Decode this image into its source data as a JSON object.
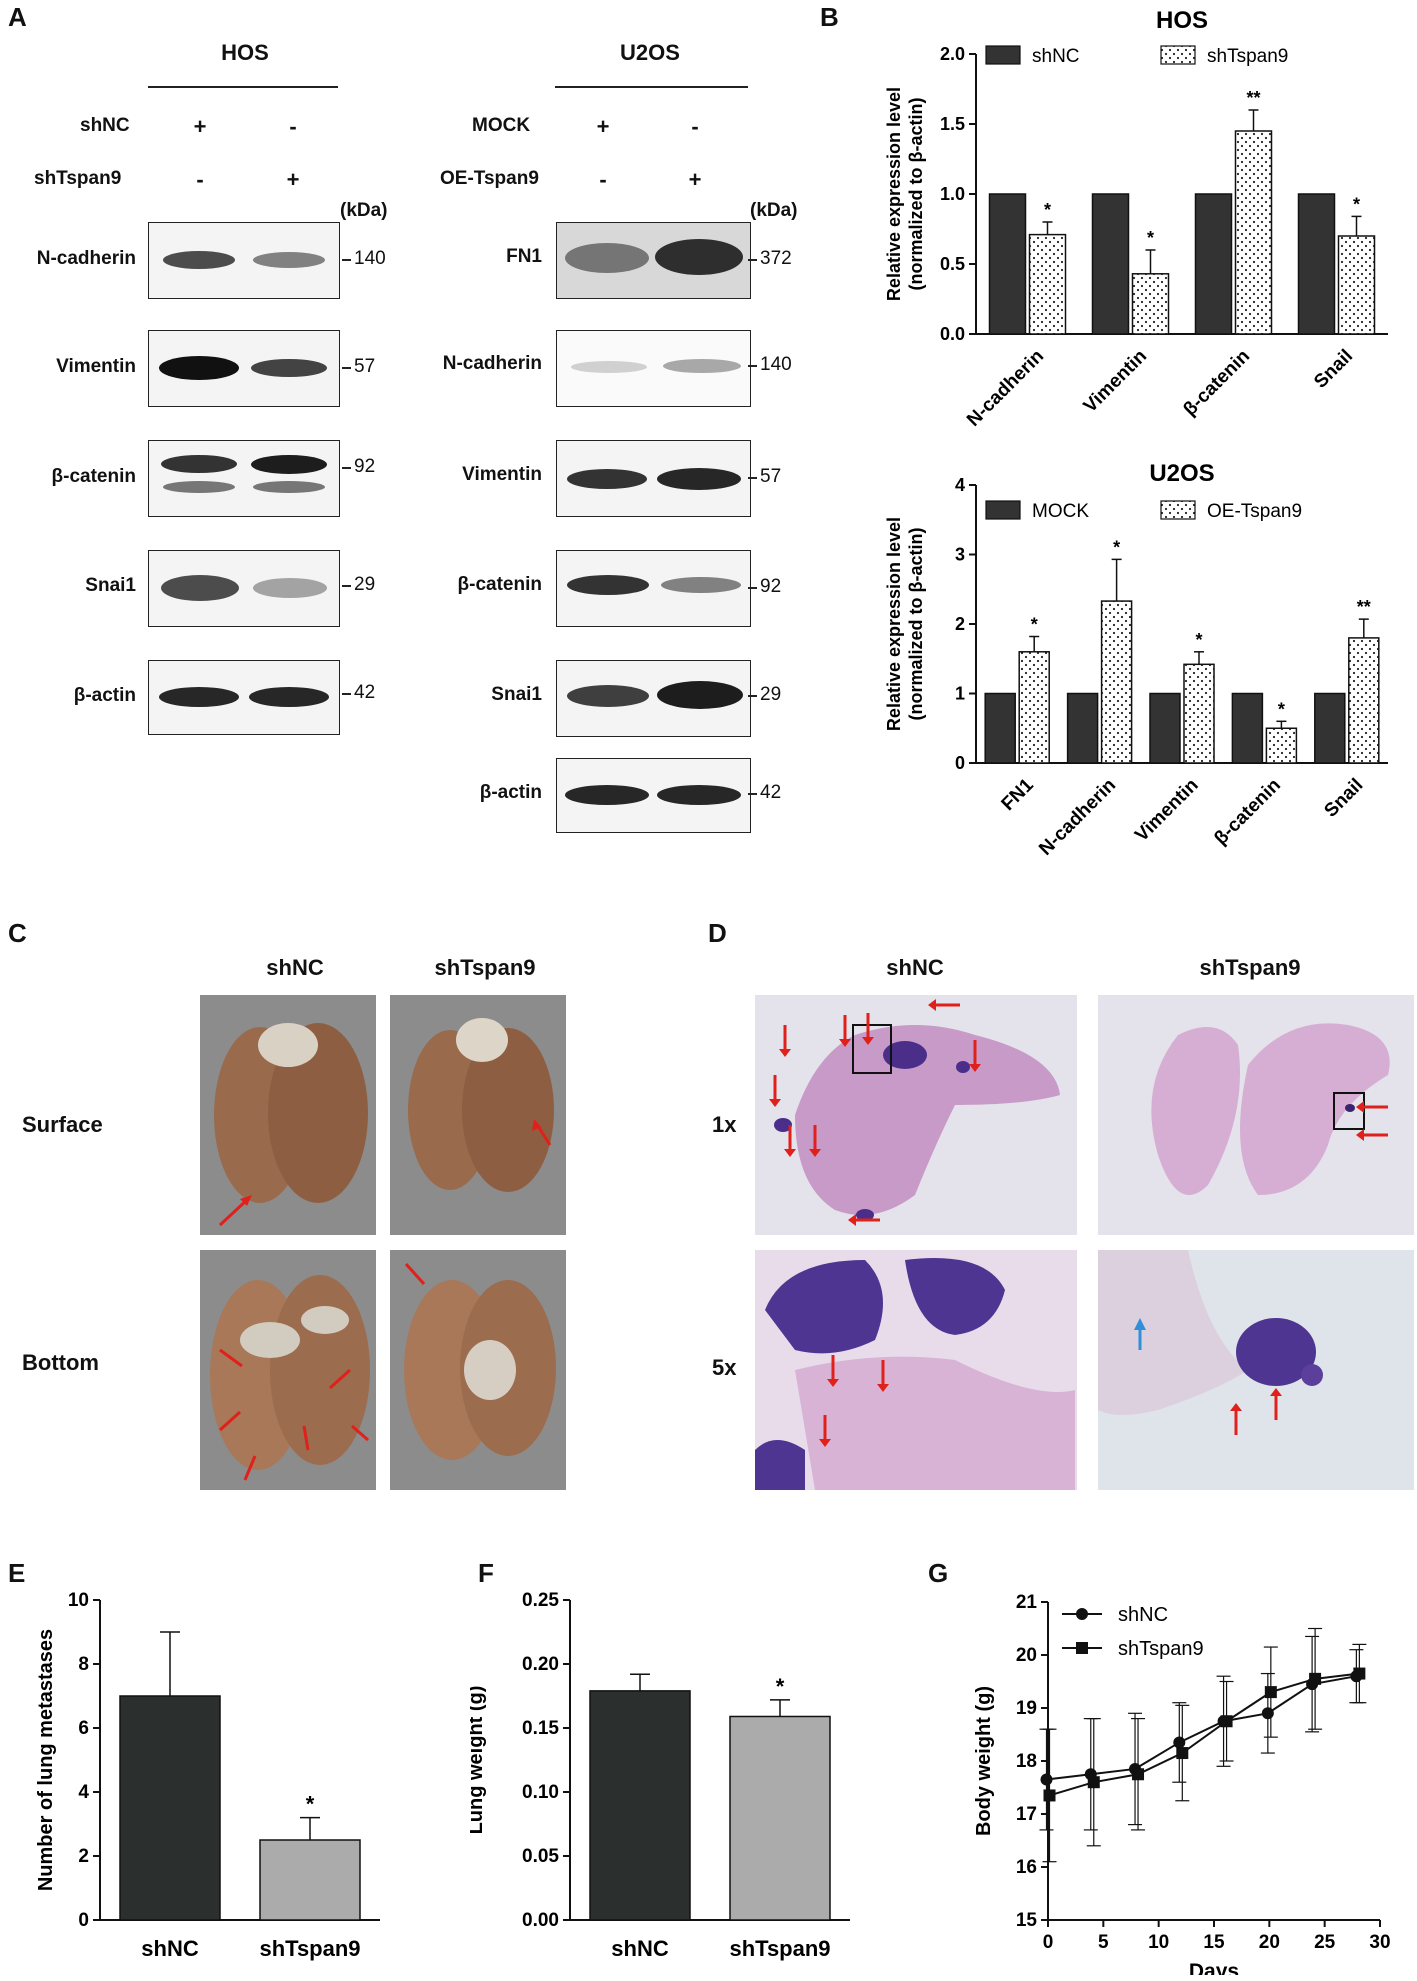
{
  "panels": {
    "A": "A",
    "B": "B",
    "C": "C",
    "D": "D",
    "E": "E",
    "F": "F",
    "G": "G"
  },
  "panelA": {
    "kda_unit": "(kDa)",
    "hos": {
      "title": "HOS",
      "conditions": [
        {
          "name": "shNC",
          "lanes": [
            "+",
            "-"
          ]
        },
        {
          "name": "shTspan9",
          "lanes": [
            "-",
            "+"
          ]
        }
      ],
      "blots": [
        {
          "label": "N-cadherin",
          "mw": "140",
          "intensity": [
            0.8,
            0.55
          ]
        },
        {
          "label": "Vimentin",
          "mw": "57",
          "intensity": [
            1.0,
            0.75
          ]
        },
        {
          "label": "β-catenin",
          "mw": "92",
          "intensity": [
            0.85,
            0.95
          ]
        },
        {
          "label": "Snai1",
          "mw": "29",
          "intensity": [
            0.85,
            0.45
          ]
        },
        {
          "label": "β-actin",
          "mw": "42",
          "intensity": [
            0.9,
            0.9
          ]
        }
      ]
    },
    "u2os": {
      "title": "U2OS",
      "conditions": [
        {
          "name": "MOCK",
          "lanes": [
            "+",
            "-"
          ]
        },
        {
          "name": "OE-Tspan9",
          "lanes": [
            "-",
            "+"
          ]
        }
      ],
      "blots": [
        {
          "label": "FN1",
          "mw": "372",
          "intensity": [
            0.6,
            0.85
          ]
        },
        {
          "label": "N-cadherin",
          "mw": "140",
          "intensity": [
            0.2,
            0.4
          ]
        },
        {
          "label": "Vimentin",
          "mw": "57",
          "intensity": [
            0.85,
            0.9
          ]
        },
        {
          "label": "β-catenin",
          "mw": "92",
          "intensity": [
            0.85,
            0.55
          ]
        },
        {
          "label": "Snai1",
          "mw": "29",
          "intensity": [
            0.8,
            0.95
          ]
        },
        {
          "label": "β-actin",
          "mw": "42",
          "intensity": [
            0.9,
            0.9
          ]
        }
      ]
    }
  },
  "panelC": {
    "columns": [
      "shNC",
      "shTspan9"
    ],
    "rows": [
      "Surface",
      "Bottom"
    ]
  },
  "panelD": {
    "columns": [
      "shNC",
      "shTspan9"
    ],
    "rows": [
      "1x",
      "5x"
    ]
  },
  "chart_data": [
    {
      "id": "B-HOS",
      "type": "bar",
      "title": "HOS",
      "ylabel": "Relative expression level\n(normalized to β-actin)",
      "ylim": [
        0,
        2.0
      ],
      "yticks": [
        "0.0",
        "0.5",
        "1.0",
        "1.5",
        "2.0"
      ],
      "categories": [
        "N-cadherin",
        "Vimentin",
        "β-catenin",
        "Snail"
      ],
      "series": [
        {
          "name": "shNC",
          "values": [
            1.0,
            1.0,
            1.0,
            1.0
          ],
          "errors": [
            0,
            0,
            0,
            0
          ],
          "color": "#333333"
        },
        {
          "name": "shTspan9",
          "values": [
            0.71,
            0.43,
            1.45,
            0.7
          ],
          "errors": [
            0.09,
            0.17,
            0.15,
            0.14
          ],
          "color": "#ffffff"
        }
      ],
      "significance": [
        "*",
        "*",
        "**",
        "*"
      ],
      "legend": "top"
    },
    {
      "id": "B-U2OS",
      "type": "bar",
      "title": "U2OS",
      "ylabel": "Relative expression level\n(normalized to β-actin)",
      "ylim": [
        0,
        4
      ],
      "yticks": [
        "0",
        "1",
        "2",
        "3",
        "4"
      ],
      "categories": [
        "FN1",
        "N-cadherin",
        "Vimentin",
        "β-catenin",
        "Snail"
      ],
      "series": [
        {
          "name": "MOCK",
          "values": [
            1.0,
            1.0,
            1.0,
            1.0,
            1.0
          ],
          "errors": [
            0,
            0,
            0,
            0,
            0
          ],
          "color": "#333333"
        },
        {
          "name": "OE-Tspan9",
          "values": [
            1.6,
            2.33,
            1.42,
            0.5,
            1.8
          ],
          "errors": [
            0.22,
            0.6,
            0.18,
            0.1,
            0.27
          ],
          "color": "#ffffff"
        }
      ],
      "significance": [
        "*",
        "*",
        "*",
        "*",
        "**"
      ],
      "legend": "top"
    },
    {
      "id": "E",
      "type": "bar",
      "ylabel": "Number of lung metastases",
      "ylim": [
        0,
        10
      ],
      "yticks": [
        "0",
        "2",
        "4",
        "6",
        "8",
        "10"
      ],
      "categories": [
        "shNC",
        "shTspan9"
      ],
      "values": [
        7.0,
        2.5
      ],
      "errors": [
        2.0,
        0.7
      ],
      "colors": [
        "#2b2f2e",
        "#ababab"
      ],
      "significance": [
        "",
        "*"
      ]
    },
    {
      "id": "F",
      "type": "bar",
      "ylabel": "Lung weight (g)",
      "ylim": [
        0,
        0.25
      ],
      "yticks": [
        "0.00",
        "0.05",
        "0.10",
        "0.15",
        "0.20",
        "0.25"
      ],
      "categories": [
        "shNC",
        "shTspan9"
      ],
      "values": [
        0.179,
        0.159
      ],
      "errors": [
        0.013,
        0.013
      ],
      "colors": [
        "#2b2f2e",
        "#ababab"
      ],
      "significance": [
        "",
        "*"
      ]
    },
    {
      "id": "G",
      "type": "line",
      "xlabel": "Days",
      "ylabel": "Body weight (g)",
      "xlim": [
        0,
        30
      ],
      "ylim": [
        15,
        21
      ],
      "xticks": [
        "0",
        "5",
        "10",
        "15",
        "20",
        "25",
        "30"
      ],
      "yticks": [
        "15",
        "16",
        "17",
        "18",
        "19",
        "20",
        "21"
      ],
      "x": [
        0,
        4,
        8,
        12,
        16,
        20,
        24,
        28
      ],
      "series": [
        {
          "name": "shNC",
          "marker": "circle",
          "values": [
            17.65,
            17.75,
            17.85,
            18.35,
            18.75,
            18.9,
            19.45,
            19.6
          ],
          "errors": [
            0.95,
            1.05,
            1.05,
            0.75,
            0.85,
            0.75,
            0.9,
            0.5
          ]
        },
        {
          "name": "shTspan9",
          "marker": "square",
          "values": [
            17.35,
            17.6,
            17.75,
            18.15,
            18.75,
            19.3,
            19.55,
            19.65
          ],
          "errors": [
            1.25,
            1.2,
            1.05,
            0.9,
            0.75,
            0.85,
            0.95,
            0.55
          ]
        }
      ],
      "legend": "top-left"
    }
  ]
}
